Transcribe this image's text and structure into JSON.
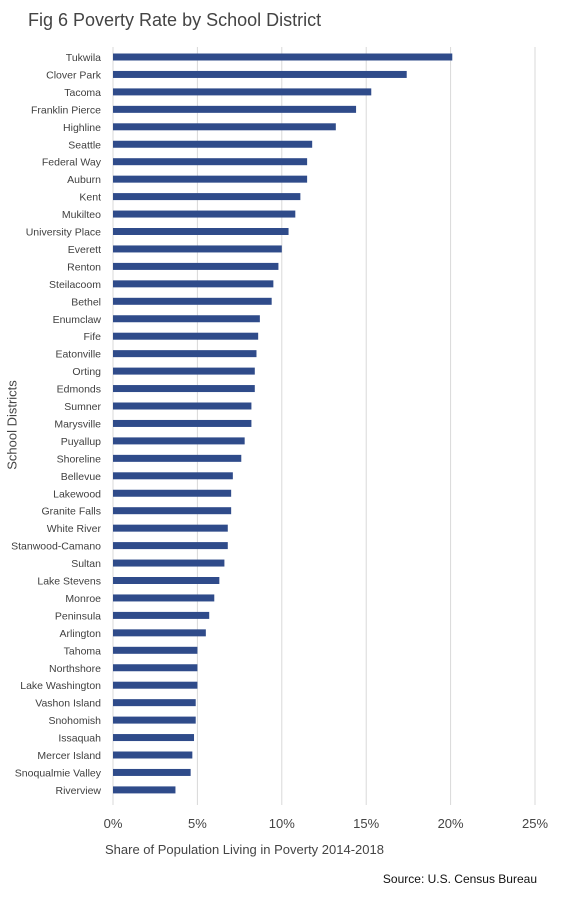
{
  "chart_data": {
    "type": "bar",
    "orientation": "horizontal",
    "title": "Fig 6 Poverty Rate by School District",
    "xlabel": "Share of Population Living in Poverty 2014-2018",
    "ylabel": "School Districts",
    "source": "Source: U.S. Census Bureau",
    "xlim": [
      0,
      25
    ],
    "x_ticks": [
      "0%",
      "5%",
      "10%",
      "15%",
      "20%",
      "25%"
    ],
    "grid": "vertical",
    "bar_color": "#2f4b8a",
    "grid_color": "#d9d9d9",
    "categories": [
      "Tukwila",
      "Clover Park",
      "Tacoma",
      "Franklin Pierce",
      "Highline",
      "Seattle",
      "Federal Way",
      "Auburn",
      "Kent",
      "Mukilteo",
      "University Place",
      "Everett",
      "Renton",
      "Steilacoom",
      "Bethel",
      "Enumclaw",
      "Fife",
      "Eatonville",
      "Orting",
      "Edmonds",
      "Sumner",
      "Marysville",
      "Puyallup",
      "Shoreline",
      "Bellevue",
      "Lakewood",
      "Granite Falls",
      "White River",
      "Stanwood-Camano",
      "Sultan",
      "Lake Stevens",
      "Monroe",
      "Peninsula",
      "Arlington",
      "Tahoma",
      "Northshore",
      "Lake Washington",
      "Vashon Island",
      "Snohomish",
      "Issaquah",
      "Mercer Island",
      "Snoqualmie Valley",
      "Riverview"
    ],
    "values": [
      20.1,
      17.4,
      15.3,
      14.4,
      13.2,
      11.8,
      11.5,
      11.5,
      11.1,
      10.8,
      10.4,
      10.0,
      9.8,
      9.5,
      9.4,
      8.7,
      8.6,
      8.5,
      8.4,
      8.4,
      8.2,
      8.2,
      7.8,
      7.6,
      7.1,
      7.0,
      7.0,
      6.8,
      6.8,
      6.6,
      6.3,
      6.0,
      5.7,
      5.5,
      5.0,
      5.0,
      5.0,
      4.9,
      4.9,
      4.8,
      4.7,
      4.6,
      3.7
    ]
  }
}
